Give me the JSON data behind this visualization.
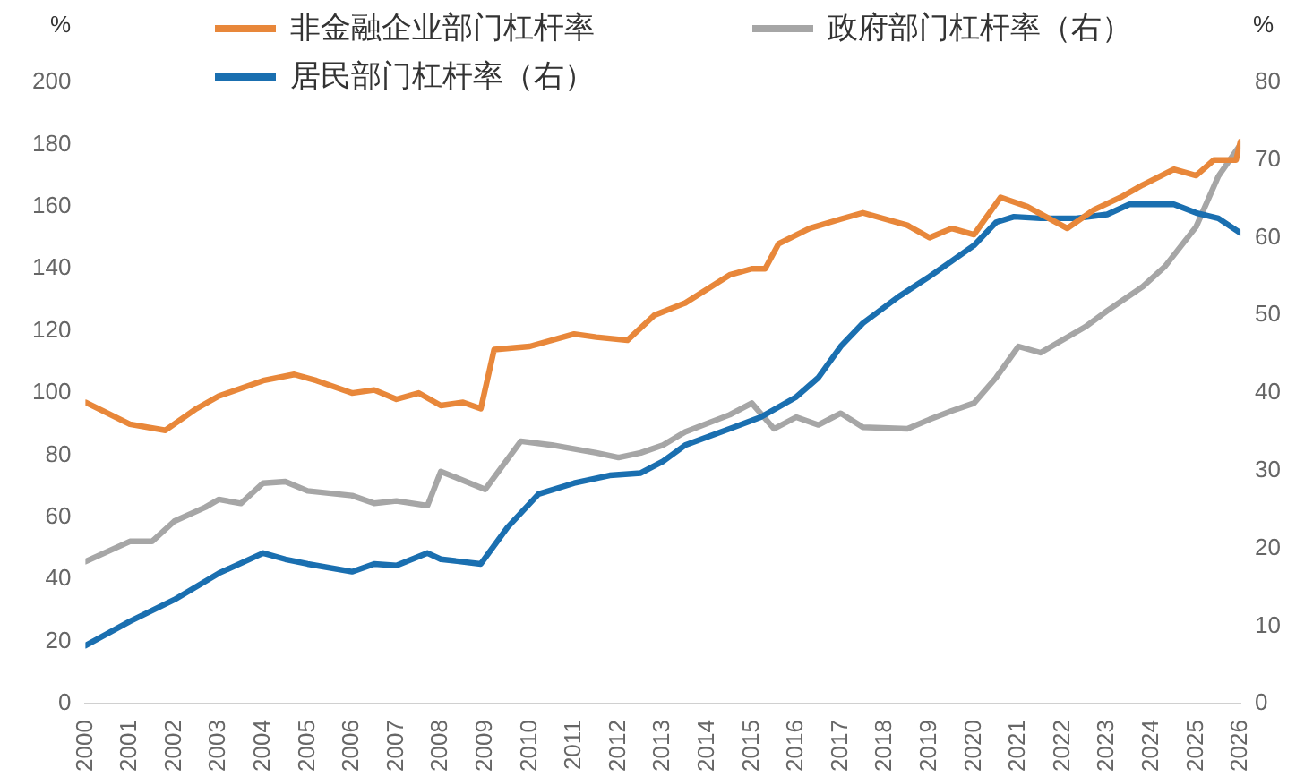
{
  "chart_data": {
    "type": "line",
    "ylabel": "%",
    "y2label": "%",
    "legend": "top",
    "grid": false,
    "marker": "none",
    "line_style": "solid",
    "xlim": [
      2000,
      2026
    ],
    "xticks": [
      2000,
      2001,
      2002,
      2003,
      2004,
      2005,
      2006,
      2007,
      2008,
      2009,
      2010,
      2011,
      2012,
      2013,
      2014,
      2015,
      2016,
      2017,
      2018,
      2019,
      2020,
      2021,
      2022,
      2023,
      2024,
      2025,
      2026
    ],
    "ylim": [
      0,
      200
    ],
    "yticks": [
      0,
      20,
      40,
      60,
      80,
      100,
      120,
      140,
      160,
      180,
      200
    ],
    "y2lim": [
      0,
      80
    ],
    "y2ticks": [
      0,
      10,
      20,
      30,
      40,
      50,
      60,
      70,
      80
    ],
    "series": [
      {
        "name": "非金融企业部门杠杆率",
        "color": "#e8873a",
        "x": [
          2000,
          2001,
          2001.8,
          2002.5,
          2003,
          2004,
          2004.7,
          2005.2,
          2006,
          2006.5,
          2007,
          2007.5,
          2008,
          2008.5,
          2008.9,
          2009.2,
          2010,
          2011,
          2011.5,
          2012.2,
          2012.8,
          2013.5,
          2014.5,
          2015,
          2015.3,
          2015.6,
          2016.3,
          2017,
          2017.5,
          2018.5,
          2019,
          2019.5,
          2020,
          2020.6,
          2021.2,
          2022.1,
          2022.7,
          2023.3,
          2023.8,
          2024.5,
          2025,
          2025.4,
          2025.9,
          2026
        ],
        "values": [
          97,
          90,
          88,
          95,
          99,
          104,
          106,
          104,
          100,
          101,
          98,
          100,
          96,
          97,
          95,
          114,
          115,
          119,
          118,
          117,
          125,
          129,
          138,
          140,
          140,
          148,
          153,
          156,
          158,
          154,
          150,
          153,
          151,
          163,
          160,
          153,
          159,
          163,
          167,
          172,
          170,
          175,
          175,
          181
        ]
      },
      {
        "name": "居民部门杠杆率（右）",
        "color": "#1a6fb0",
        "axis": "y2",
        "x": [
          2000,
          2001,
          2002,
          2003,
          2004,
          2004.5,
          2005,
          2006,
          2006.5,
          2007,
          2007.7,
          2008,
          2008.9,
          2009.5,
          2010.2,
          2011,
          2011.8,
          2012.5,
          2013,
          2013.5,
          2014.5,
          2015.2,
          2016,
          2016.5,
          2017,
          2017.5,
          2018.3,
          2019,
          2019.5,
          2020,
          2020.5,
          2020.9,
          2021.5,
          2022.3,
          2023,
          2023.5,
          2024.5,
          2025,
          2025.5,
          2026
        ],
        "values": [
          7.5,
          10.6,
          13.4,
          16.8,
          19.4,
          18.6,
          18,
          17,
          18,
          17.8,
          19.4,
          18.6,
          18,
          22.7,
          27,
          28.4,
          29.4,
          29.7,
          31.2,
          33.3,
          35.4,
          36.9,
          39.5,
          42,
          46,
          49,
          52.4,
          55,
          57,
          59,
          62,
          62.7,
          62.5,
          62.5,
          63,
          64.3,
          64.3,
          63.2,
          62.5,
          60.6
        ]
      },
      {
        "name": "政府部门杠杆率（右）",
        "color": "#a6a6a6",
        "axis": "y2",
        "x": [
          2000,
          2001,
          2001.5,
          2002,
          2002.7,
          2003,
          2003.5,
          2004,
          2004.5,
          2005,
          2006,
          2006.5,
          2007,
          2007.7,
          2008,
          2009,
          2009.8,
          2010.5,
          2011.5,
          2012,
          2012.5,
          2013,
          2013.5,
          2014.5,
          2015,
          2015.5,
          2016,
          2016.5,
          2017,
          2017.5,
          2018.5,
          2019,
          2019.5,
          2020,
          2020.5,
          2021,
          2021.5,
          2022.5,
          2023,
          2023.8,
          2024.3,
          2025,
          2025.5,
          2026
        ],
        "values": [
          18.3,
          20.9,
          20.9,
          23.5,
          25.3,
          26.3,
          25.8,
          28.4,
          28.6,
          27.4,
          26.8,
          25.8,
          26.1,
          25.5,
          29.9,
          27.6,
          33.8,
          33.3,
          32.3,
          31.7,
          32.3,
          33.3,
          35,
          37.2,
          38.7,
          35.4,
          36.9,
          35.9,
          37.4,
          35.6,
          35.4,
          36.6,
          37.7,
          38.7,
          42,
          46,
          45.2,
          48.5,
          50.6,
          53.7,
          56.3,
          61.4,
          67.9,
          72
        ]
      }
    ]
  }
}
